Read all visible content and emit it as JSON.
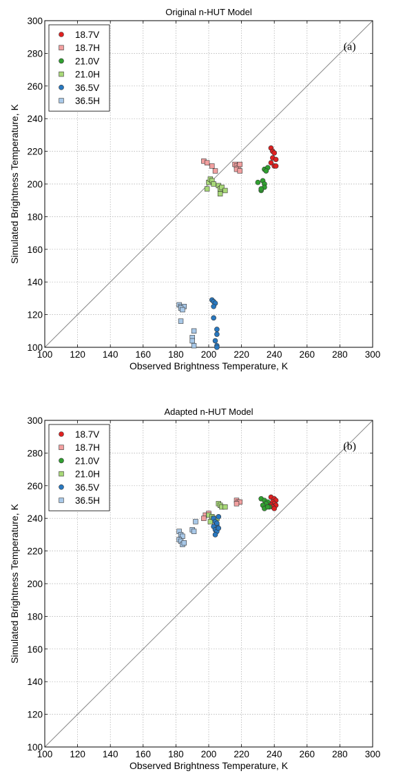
{
  "chart_data": [
    {
      "type": "scatter",
      "title": "Original n-HUT Model",
      "panel_label": "(a)",
      "xlabel": "Observed Brightness Temperature, K",
      "ylabel": "Simulated Brightness Temperature, K",
      "xlim": [
        100,
        300
      ],
      "ylim": [
        100,
        300
      ],
      "xticks": [
        100,
        120,
        140,
        160,
        180,
        200,
        220,
        240,
        260,
        280,
        300
      ],
      "yticks": [
        100,
        120,
        140,
        160,
        180,
        200,
        220,
        240,
        260,
        280,
        300
      ],
      "grid": true,
      "legend_position": "top-left",
      "reference_line": "1:1",
      "series": [
        {
          "name": "18.7V",
          "marker": "circle",
          "color": "#e02020",
          "x": [
            238,
            239,
            240,
            239,
            241,
            238,
            240,
            241
          ],
          "y": [
            222,
            220,
            219,
            216,
            215,
            213,
            211,
            211
          ]
        },
        {
          "name": "18.7H",
          "marker": "square",
          "color": "#f2a0a0",
          "x": [
            197,
            199,
            202,
            204,
            216,
            217,
            218,
            219,
            217,
            219
          ],
          "y": [
            214,
            213,
            211,
            208,
            212,
            211,
            210,
            212,
            209,
            208
          ]
        },
        {
          "name": "21.0V",
          "marker": "circle",
          "color": "#30a030",
          "x": [
            234,
            236,
            235,
            233,
            234,
            230,
            232,
            234,
            232
          ],
          "y": [
            209,
            210,
            208,
            202,
            200,
            201,
            196,
            198,
            197
          ]
        },
        {
          "name": "21.0H",
          "marker": "square",
          "color": "#a8d878",
          "x": [
            200,
            201,
            202,
            203,
            199,
            206,
            207,
            208,
            210,
            207
          ],
          "y": [
            201,
            203,
            202,
            200,
            197,
            199,
            197,
            198,
            196,
            194
          ]
        },
        {
          "name": "36.5V",
          "marker": "circle",
          "color": "#2878c0",
          "x": [
            202,
            203,
            204,
            203,
            203,
            205,
            205,
            204,
            205,
            205
          ],
          "y": [
            129,
            128,
            127,
            125,
            118,
            111,
            108,
            104,
            101,
            100
          ]
        },
        {
          "name": "36.5H",
          "marker": "square",
          "color": "#a8c8e8",
          "x": [
            182,
            183,
            185,
            183,
            184,
            183,
            191,
            190,
            190,
            191
          ],
          "y": [
            126,
            125,
            125,
            124,
            123,
            116,
            110,
            106,
            104,
            101
          ]
        }
      ]
    },
    {
      "type": "scatter",
      "title": "Adapted n-HUT Model",
      "panel_label": "(b)",
      "xlabel": "Observed Brightness Temperature, K",
      "ylabel": "Simulated Brightness Temperature, K",
      "xlim": [
        100,
        300
      ],
      "ylim": [
        100,
        300
      ],
      "xticks": [
        100,
        120,
        140,
        160,
        180,
        200,
        220,
        240,
        260,
        280,
        300
      ],
      "yticks": [
        100,
        120,
        140,
        160,
        180,
        200,
        220,
        240,
        260,
        280,
        300
      ],
      "grid": true,
      "legend_position": "top-left",
      "reference_line": "1:1",
      "series": [
        {
          "name": "18.7V",
          "marker": "circle",
          "color": "#e02020",
          "x": [
            238,
            240,
            241,
            239,
            240,
            238,
            241,
            239,
            240
          ],
          "y": [
            253,
            252,
            251,
            250,
            249,
            248,
            248,
            247,
            246
          ]
        },
        {
          "name": "18.7H",
          "marker": "square",
          "color": "#f2a0a0",
          "x": [
            198,
            200,
            202,
            197,
            217,
            218,
            219,
            217
          ],
          "y": [
            242,
            243,
            241,
            240,
            251,
            250,
            250,
            249
          ]
        },
        {
          "name": "21.0V",
          "marker": "circle",
          "color": "#30a030",
          "x": [
            232,
            234,
            236,
            235,
            233,
            237,
            234,
            236
          ],
          "y": [
            252,
            251,
            250,
            249,
            248,
            247,
            246,
            247
          ]
        },
        {
          "name": "21.0H",
          "marker": "square",
          "color": "#a8d878",
          "x": [
            200,
            202,
            203,
            204,
            201,
            206,
            207,
            208,
            210,
            205
          ],
          "y": [
            242,
            241,
            240,
            239,
            238,
            249,
            248,
            247,
            247,
            240
          ]
        },
        {
          "name": "36.5V",
          "marker": "circle",
          "color": "#2878c0",
          "x": [
            203,
            204,
            205,
            206,
            203,
            204,
            205,
            206,
            204,
            205
          ],
          "y": [
            240,
            238,
            236,
            241,
            235,
            233,
            232,
            234,
            230,
            237
          ]
        },
        {
          "name": "36.5H",
          "marker": "square",
          "color": "#a8c8e8",
          "x": [
            182,
            183,
            184,
            182,
            183,
            184,
            185,
            190,
            191,
            192
          ],
          "y": [
            232,
            230,
            229,
            227,
            226,
            224,
            225,
            233,
            232,
            238
          ]
        }
      ]
    }
  ]
}
